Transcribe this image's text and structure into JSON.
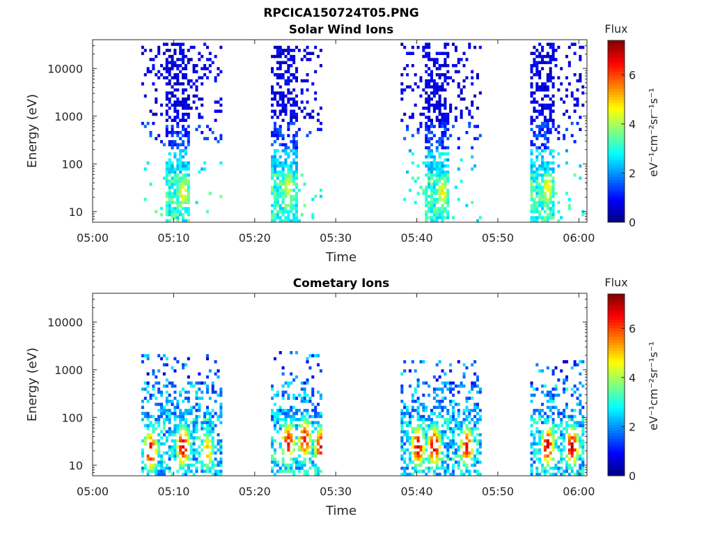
{
  "figure": {
    "suptitle": "RPCICA150724T05.PNG"
  },
  "colormap": "jet",
  "chart_data": [
    {
      "type": "heatmap",
      "title": "Solar Wind Ions",
      "xlabel": "Time",
      "ylabel": "Energy (eV)",
      "yscale": "log",
      "xlim": [
        "05:00",
        "06:01"
      ],
      "ylim": [
        6,
        40000
      ],
      "xticks": [
        "05:00",
        "05:10",
        "05:20",
        "05:30",
        "05:40",
        "05:50",
        "06:00"
      ],
      "yticks": [
        "10",
        "100",
        "1000",
        "10000"
      ],
      "colorbar": {
        "label": "Flux",
        "unit": "eV⁻¹cm⁻²sr⁻¹s⁻¹",
        "range": [
          0,
          7.4
        ],
        "ticks": [
          "0",
          "2",
          "4",
          "6"
        ]
      },
      "bursts": [
        {
          "start": "05:06",
          "end": "05:16",
          "core_start": "05:09",
          "core_end": "05:12",
          "max_energy": 35000,
          "hot_spots": [
            {
              "time": "05:11",
              "energy": 25,
              "flux": 4.5
            }
          ]
        },
        {
          "start": "05:22",
          "end": "05:28",
          "core_start": "05:22",
          "core_end": "05:25",
          "max_energy": 30000,
          "hot_spots": [
            {
              "time": "05:24",
              "energy": 35,
              "flux": 4.3
            }
          ]
        },
        {
          "start": "05:38",
          "end": "05:48",
          "core_start": "05:41",
          "core_end": "05:44",
          "max_energy": 35000,
          "hot_spots": [
            {
              "time": "05:43",
              "energy": 25,
              "flux": 4.6
            }
          ]
        },
        {
          "start": "05:54",
          "end": "06:01",
          "core_start": "05:54",
          "core_end": "05:57",
          "max_energy": 33000,
          "hot_spots": [
            {
              "time": "05:56",
              "energy": 30,
              "flux": 4.6
            }
          ]
        }
      ]
    },
    {
      "type": "heatmap",
      "title": "Cometary Ions",
      "xlabel": "Time",
      "ylabel": "Energy (eV)",
      "yscale": "log",
      "xlim": [
        "05:00",
        "06:01"
      ],
      "ylim": [
        6,
        40000
      ],
      "xticks": [
        "05:00",
        "05:10",
        "05:20",
        "05:30",
        "05:40",
        "05:50",
        "06:00"
      ],
      "yticks": [
        "10",
        "100",
        "1000",
        "10000"
      ],
      "colorbar": {
        "label": "Flux",
        "unit": "eV⁻¹cm⁻²sr⁻¹s⁻¹",
        "range": [
          0,
          7.4
        ],
        "ticks": [
          "0",
          "2",
          "4",
          "6"
        ]
      },
      "bursts": [
        {
          "start": "05:06",
          "end": "05:16",
          "max_energy": 2000,
          "hot_spots": [
            {
              "time": "05:07",
              "energy": 20,
              "flux": 6.8
            },
            {
              "time": "05:11",
              "energy": 25,
              "flux": 6.8
            },
            {
              "time": "05:14",
              "energy": 20,
              "flux": 5.0
            }
          ]
        },
        {
          "start": "05:22",
          "end": "05:28",
          "max_energy": 2300,
          "hot_spots": [
            {
              "time": "05:24",
              "energy": 30,
              "flux": 6.4
            },
            {
              "time": "05:26",
              "energy": 35,
              "flux": 6.4
            },
            {
              "time": "05:28",
              "energy": 25,
              "flux": 6.4
            }
          ]
        },
        {
          "start": "05:38",
          "end": "05:48",
          "max_energy": 1500,
          "hot_spots": [
            {
              "time": "05:40",
              "energy": 25,
              "flux": 6.8
            },
            {
              "time": "05:42",
              "energy": 25,
              "flux": 6.8
            },
            {
              "time": "05:46",
              "energy": 25,
              "flux": 6.4
            }
          ]
        },
        {
          "start": "05:54",
          "end": "06:01",
          "max_energy": 1500,
          "hot_spots": [
            {
              "time": "05:56",
              "energy": 25,
              "flux": 6.8
            },
            {
              "time": "05:59",
              "energy": 25,
              "flux": 6.8
            }
          ]
        }
      ]
    }
  ]
}
